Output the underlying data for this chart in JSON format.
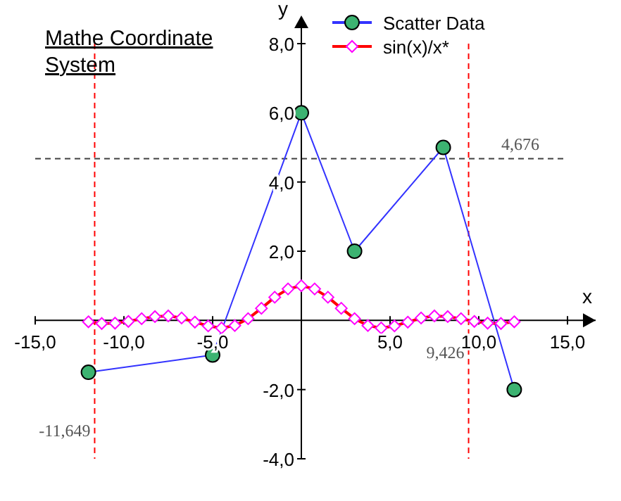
{
  "chart_data": {
    "type": "line",
    "title": "Mathe Coordinate System",
    "xlabel": "x",
    "ylabel": "y",
    "xlim": [
      -15,
      15
    ],
    "ylim": [
      -4,
      8
    ],
    "xticks": [
      {
        "value": -15,
        "label": "-15,0"
      },
      {
        "value": -10,
        "label": "-10,0"
      },
      {
        "value": -5,
        "label": "-5,0"
      },
      {
        "value": 5,
        "label": "5,0"
      },
      {
        "value": 10,
        "label": "10,0"
      },
      {
        "value": 15,
        "label": "15,0"
      }
    ],
    "yticks": [
      {
        "value": -4,
        "label": "-4,0"
      },
      {
        "value": -2,
        "label": "-2,0"
      },
      {
        "value": 2,
        "label": "2,0"
      },
      {
        "value": 4,
        "label": "4,0"
      },
      {
        "value": 6,
        "label": "6,0"
      },
      {
        "value": 8,
        "label": "8,0"
      }
    ],
    "legend": "top",
    "grid": false,
    "series": [
      {
        "name": "Scatter Data",
        "color": "#3333ff",
        "marker": "circle",
        "x": [
          -12,
          -5,
          0,
          3,
          8,
          12
        ],
        "values": [
          -1.5,
          -1,
          6,
          2,
          5,
          -2
        ],
        "colors": [
          "#3cb371",
          "#3cb371",
          "#3cb371",
          "#3cb371",
          "#3cb371",
          "#3cb371"
        ]
      },
      {
        "name": "sin(x)/x*",
        "color": "#ff0000",
        "marker": "diamond",
        "x": [
          -12,
          -11.25,
          -10.5,
          -9.75,
          -9,
          -8.25,
          -7.5,
          -6.75,
          -6,
          -5.25,
          -4.5,
          -3.75,
          -3,
          -2.25,
          -1.5,
          -0.75,
          0,
          0.75,
          1.5,
          2.25,
          3,
          3.75,
          4.5,
          5.25,
          6,
          6.75,
          7.5,
          8.25,
          9,
          9.75,
          10.5,
          11.25,
          12
        ],
        "values": [
          -0.04,
          -0.09,
          -0.08,
          -0.03,
          0.05,
          0.11,
          0.13,
          0.07,
          -0.05,
          -0.16,
          -0.22,
          -0.15,
          0.05,
          0.35,
          0.67,
          0.91,
          1,
          0.91,
          0.67,
          0.35,
          0.05,
          -0.15,
          -0.22,
          -0.16,
          -0.05,
          0.07,
          0.13,
          0.11,
          0.05,
          -0.03,
          -0.08,
          -0.09,
          -0.04
        ],
        "colors": [
          "#ff00ff",
          "#ff00ff",
          "#ff00ff",
          "#ff00ff",
          "#ff00ff",
          "#ff00ff",
          "#ff00ff",
          "#ff00ff",
          "#ff00ff",
          "#ff00ff",
          "#ff00ff",
          "#ff00ff",
          "#ff00ff",
          "#ff00ff",
          "#ff00ff",
          "#ff00ff",
          "#ff00ff",
          "#ff00ff",
          "#ff00ff",
          "#ff00ff",
          "#ff00ff",
          "#ff00ff",
          "#ff00ff",
          "#ff00ff",
          "#ff00ff",
          "#ff00ff",
          "#ff00ff",
          "#ff00ff",
          "#ff00ff",
          "#ff00ff",
          "#ff00ff",
          "#ff00ff",
          "#ff00ff"
        ]
      }
    ],
    "ref_lines": [
      {
        "axis": "x",
        "value": -11.649,
        "label": "-11,649",
        "color": "#ff0000",
        "line_style": "dashed"
      },
      {
        "axis": "x",
        "value": 9.426,
        "label": "9,426",
        "color": "#ff0000",
        "line_style": "dashed"
      },
      {
        "axis": "y",
        "value": 4.676,
        "label": "4,676",
        "color": "#404040",
        "line_style": "dashed"
      }
    ]
  }
}
